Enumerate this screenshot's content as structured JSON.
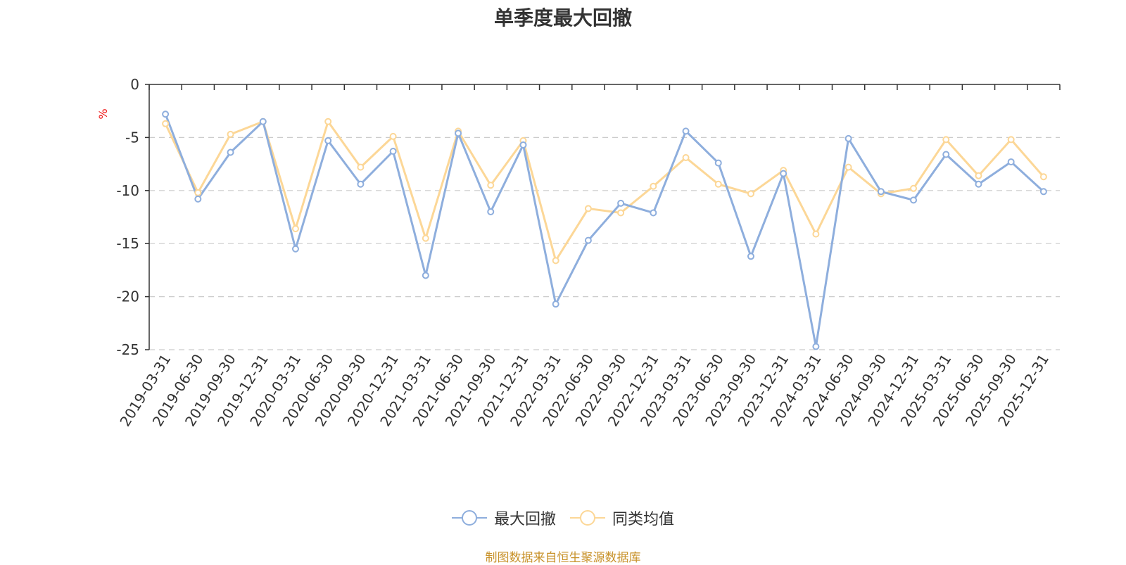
{
  "colors": {
    "series1": "#8eaedd",
    "series2": "#fcd797",
    "axis": "#333333",
    "grid": "#cccccc",
    "unit": "#ee1111",
    "source": "#c8922a",
    "text": "#333333"
  },
  "chart_data": {
    "type": "line",
    "title": "单季度最大回撤",
    "ylabel": "%",
    "xlabel": "",
    "ylim": [
      -25,
      0
    ],
    "yticks": [
      0,
      -5,
      -10,
      -15,
      -20,
      -25
    ],
    "grid": true,
    "legend_position": "bottom-center",
    "categories": [
      "2019-03-31",
      "2019-06-30",
      "2019-09-30",
      "2019-12-31",
      "2020-03-31",
      "2020-06-30",
      "2020-09-30",
      "2020-12-31",
      "2021-03-31",
      "2021-06-30",
      "2021-09-30",
      "2021-12-31",
      "2022-03-31",
      "2022-06-30",
      "2022-09-30",
      "2022-12-31",
      "2023-03-31",
      "2023-06-30",
      "2023-09-30",
      "2023-12-31",
      "2024-03-31",
      "2024-06-30",
      "2024-09-30",
      "2024-12-31",
      "2025-03-31",
      "2025-06-30",
      "2025-09-30",
      "2025-12-31"
    ],
    "series": [
      {
        "name": "最大回撤",
        "values": [
          -2.8,
          -10.8,
          -6.4,
          -3.5,
          -15.5,
          -5.3,
          -9.4,
          -6.3,
          -18.0,
          -4.6,
          -12.0,
          -5.7,
          -20.7,
          -14.7,
          -11.2,
          -12.1,
          -4.4,
          -7.4,
          -16.2,
          -8.4,
          -24.7,
          -5.1,
          -10.1,
          -10.9,
          -6.6,
          -9.4,
          -7.3,
          -10.1
        ]
      },
      {
        "name": "同类均值",
        "values": [
          -3.7,
          -10.2,
          -4.7,
          -3.5,
          -13.6,
          -3.5,
          -7.8,
          -4.9,
          -14.5,
          -4.4,
          -9.5,
          -5.3,
          -16.6,
          -11.7,
          -12.1,
          -9.6,
          -6.9,
          -9.4,
          -10.3,
          -8.1,
          -14.1,
          -7.8,
          -10.3,
          -9.8,
          -5.2,
          -8.6,
          -5.2,
          -8.7
        ]
      }
    ]
  },
  "source_text": "制图数据来自恒生聚源数据库"
}
